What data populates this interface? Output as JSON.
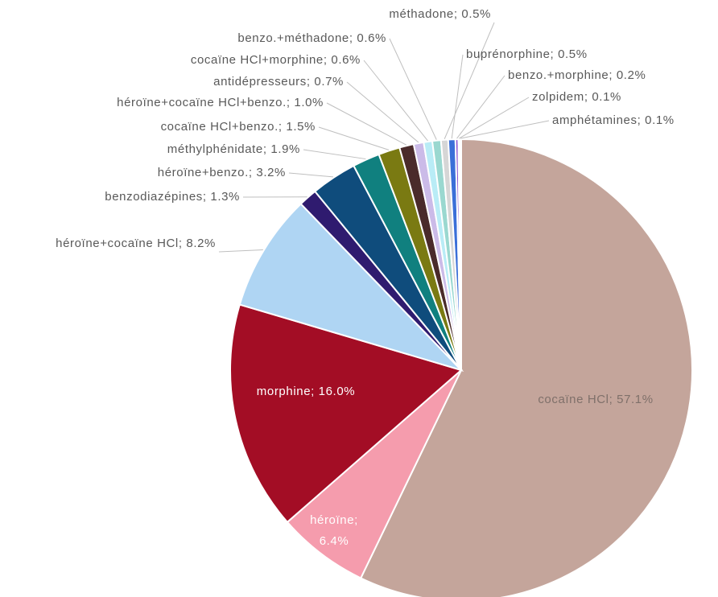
{
  "chart_data": {
    "type": "pie",
    "labels": [
      "cocaïne HCl; 57.1%",
      [
        "héroïne;",
        "6.4%"
      ],
      "morphine; 16.0%",
      "héroïne+cocaïne HCl; 8.2%",
      "benzodiazépines; 1.3%",
      "héroïne+benzo.; 3.2%",
      "méthylphénidate; 1.9%",
      "cocaïne HCl+benzo.; 1.5%",
      "héroïne+cocaïne HCl+benzo.; 1.0%",
      "antidépresseurs; 0.7%",
      "cocaïne HCl+morphine; 0.6%",
      "benzo.+méthadone; 0.6%",
      "méthadone; 0.5%",
      "buprénorphine; 0.5%",
      "benzo.+morphine; 0.2%",
      "zolpidem; 0.1%",
      "amphétamines; 0.1%"
    ],
    "values": [
      57.1,
      6.4,
      16.0,
      8.2,
      1.3,
      3.2,
      1.9,
      1.5,
      1.0,
      0.7,
      0.6,
      0.6,
      0.5,
      0.5,
      0.2,
      0.1,
      0.1
    ],
    "colors": [
      "#c4a59b",
      "#f59cad",
      "#a30d25",
      "#afd5f3",
      "#2f1b6f",
      "#0f4c7c",
      "#10807f",
      "#7a7a12",
      "#4a2b2b",
      "#cbbbe8",
      "#b9ecf6",
      "#9ad8d0",
      "#d6d6d6",
      "#3b6fd8",
      "#8b50d0",
      "#5f5f5f",
      "#333333"
    ]
  }
}
